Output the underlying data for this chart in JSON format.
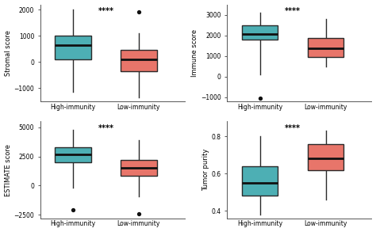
{
  "panels": [
    {
      "ylabel": "Stromal score",
      "ylim": [
        -1500,
        2200
      ],
      "yticks": [
        -1000,
        0,
        1000,
        2000
      ],
      "high": {
        "q1": 100,
        "median": 650,
        "q3": 1000,
        "whislo": -1150,
        "whishi": 2000,
        "fliers": []
      },
      "low": {
        "q1": -350,
        "median": 100,
        "q3": 450,
        "whislo": -1350,
        "whishi": 1100,
        "fliers": [
          1900
        ]
      }
    },
    {
      "ylabel": "Immune score",
      "ylim": [
        -1200,
        3500
      ],
      "yticks": [
        -1000,
        0,
        1000,
        2000,
        3000
      ],
      "high": {
        "q1": 1800,
        "median": 2050,
        "q3": 2500,
        "whislo": 100,
        "whishi": 3100,
        "fliers": [
          -1050
        ]
      },
      "low": {
        "q1": 950,
        "median": 1350,
        "q3": 1850,
        "whislo": 500,
        "whishi": 2800,
        "fliers": []
      }
    },
    {
      "ylabel": "ESTIMATE score",
      "ylim": [
        -2800,
        5500
      ],
      "yticks": [
        -2500,
        0,
        2500,
        5000
      ],
      "high": {
        "q1": 2000,
        "median": 2700,
        "q3": 3300,
        "whislo": -200,
        "whishi": 4800,
        "fliers": [
          -2100
        ]
      },
      "low": {
        "q1": 850,
        "median": 1500,
        "q3": 2200,
        "whislo": -900,
        "whishi": 3900,
        "fliers": [
          -2400
        ]
      }
    },
    {
      "ylabel": "Tumor purity",
      "ylim": [
        0.36,
        0.88
      ],
      "yticks": [
        0.4,
        0.6,
        0.8
      ],
      "high": {
        "q1": 0.48,
        "median": 0.55,
        "q3": 0.64,
        "whislo": 0.38,
        "whishi": 0.8,
        "fliers": []
      },
      "low": {
        "q1": 0.62,
        "median": 0.68,
        "q3": 0.76,
        "whislo": 0.46,
        "whishi": 0.83,
        "fliers": []
      }
    }
  ],
  "color_high": "#4DAFB4",
  "color_low": "#E8756A",
  "xlabel_high": "High-immunity",
  "xlabel_low": "Low-immunity",
  "significance": "****",
  "background_color": "#ffffff",
  "box_width": 0.55,
  "linewidth": 1.0,
  "median_lw": 2.0
}
